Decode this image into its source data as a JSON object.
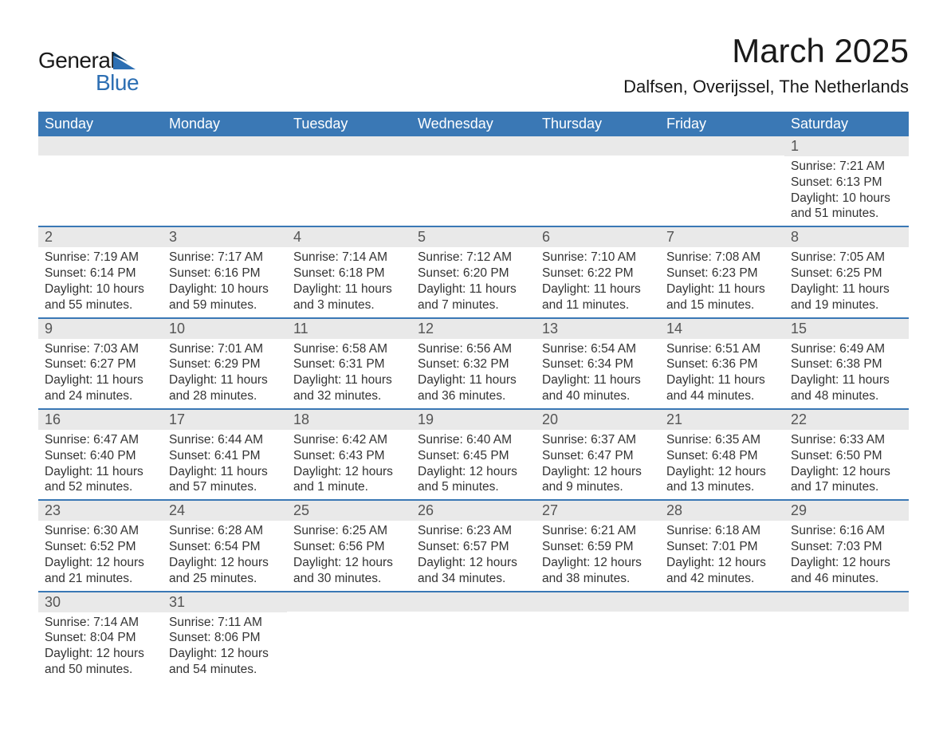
{
  "logo": {
    "text1": "General",
    "text2": "Blue"
  },
  "title": "March 2025",
  "location": "Dalfsen, Overijssel, The Netherlands",
  "colors": {
    "header_bg": "#3a78b5",
    "header_text": "#ffffff",
    "daynum_bg": "#e9e9e9",
    "row_border": "#3a78b5",
    "logo_blue": "#2d6fb3",
    "body_text": "#333333"
  },
  "day_headers": [
    "Sunday",
    "Monday",
    "Tuesday",
    "Wednesday",
    "Thursday",
    "Friday",
    "Saturday"
  ],
  "weeks": [
    [
      {
        "day": "",
        "sunrise": "",
        "sunset": "",
        "daylight": ""
      },
      {
        "day": "",
        "sunrise": "",
        "sunset": "",
        "daylight": ""
      },
      {
        "day": "",
        "sunrise": "",
        "sunset": "",
        "daylight": ""
      },
      {
        "day": "",
        "sunrise": "",
        "sunset": "",
        "daylight": ""
      },
      {
        "day": "",
        "sunrise": "",
        "sunset": "",
        "daylight": ""
      },
      {
        "day": "",
        "sunrise": "",
        "sunset": "",
        "daylight": ""
      },
      {
        "day": "1",
        "sunrise": "Sunrise: 7:21 AM",
        "sunset": "Sunset: 6:13 PM",
        "daylight": "Daylight: 10 hours and 51 minutes."
      }
    ],
    [
      {
        "day": "2",
        "sunrise": "Sunrise: 7:19 AM",
        "sunset": "Sunset: 6:14 PM",
        "daylight": "Daylight: 10 hours and 55 minutes."
      },
      {
        "day": "3",
        "sunrise": "Sunrise: 7:17 AM",
        "sunset": "Sunset: 6:16 PM",
        "daylight": "Daylight: 10 hours and 59 minutes."
      },
      {
        "day": "4",
        "sunrise": "Sunrise: 7:14 AM",
        "sunset": "Sunset: 6:18 PM",
        "daylight": "Daylight: 11 hours and 3 minutes."
      },
      {
        "day": "5",
        "sunrise": "Sunrise: 7:12 AM",
        "sunset": "Sunset: 6:20 PM",
        "daylight": "Daylight: 11 hours and 7 minutes."
      },
      {
        "day": "6",
        "sunrise": "Sunrise: 7:10 AM",
        "sunset": "Sunset: 6:22 PM",
        "daylight": "Daylight: 11 hours and 11 minutes."
      },
      {
        "day": "7",
        "sunrise": "Sunrise: 7:08 AM",
        "sunset": "Sunset: 6:23 PM",
        "daylight": "Daylight: 11 hours and 15 minutes."
      },
      {
        "day": "8",
        "sunrise": "Sunrise: 7:05 AM",
        "sunset": "Sunset: 6:25 PM",
        "daylight": "Daylight: 11 hours and 19 minutes."
      }
    ],
    [
      {
        "day": "9",
        "sunrise": "Sunrise: 7:03 AM",
        "sunset": "Sunset: 6:27 PM",
        "daylight": "Daylight: 11 hours and 24 minutes."
      },
      {
        "day": "10",
        "sunrise": "Sunrise: 7:01 AM",
        "sunset": "Sunset: 6:29 PM",
        "daylight": "Daylight: 11 hours and 28 minutes."
      },
      {
        "day": "11",
        "sunrise": "Sunrise: 6:58 AM",
        "sunset": "Sunset: 6:31 PM",
        "daylight": "Daylight: 11 hours and 32 minutes."
      },
      {
        "day": "12",
        "sunrise": "Sunrise: 6:56 AM",
        "sunset": "Sunset: 6:32 PM",
        "daylight": "Daylight: 11 hours and 36 minutes."
      },
      {
        "day": "13",
        "sunrise": "Sunrise: 6:54 AM",
        "sunset": "Sunset: 6:34 PM",
        "daylight": "Daylight: 11 hours and 40 minutes."
      },
      {
        "day": "14",
        "sunrise": "Sunrise: 6:51 AM",
        "sunset": "Sunset: 6:36 PM",
        "daylight": "Daylight: 11 hours and 44 minutes."
      },
      {
        "day": "15",
        "sunrise": "Sunrise: 6:49 AM",
        "sunset": "Sunset: 6:38 PM",
        "daylight": "Daylight: 11 hours and 48 minutes."
      }
    ],
    [
      {
        "day": "16",
        "sunrise": "Sunrise: 6:47 AM",
        "sunset": "Sunset: 6:40 PM",
        "daylight": "Daylight: 11 hours and 52 minutes."
      },
      {
        "day": "17",
        "sunrise": "Sunrise: 6:44 AM",
        "sunset": "Sunset: 6:41 PM",
        "daylight": "Daylight: 11 hours and 57 minutes."
      },
      {
        "day": "18",
        "sunrise": "Sunrise: 6:42 AM",
        "sunset": "Sunset: 6:43 PM",
        "daylight": "Daylight: 12 hours and 1 minute."
      },
      {
        "day": "19",
        "sunrise": "Sunrise: 6:40 AM",
        "sunset": "Sunset: 6:45 PM",
        "daylight": "Daylight: 12 hours and 5 minutes."
      },
      {
        "day": "20",
        "sunrise": "Sunrise: 6:37 AM",
        "sunset": "Sunset: 6:47 PM",
        "daylight": "Daylight: 12 hours and 9 minutes."
      },
      {
        "day": "21",
        "sunrise": "Sunrise: 6:35 AM",
        "sunset": "Sunset: 6:48 PM",
        "daylight": "Daylight: 12 hours and 13 minutes."
      },
      {
        "day": "22",
        "sunrise": "Sunrise: 6:33 AM",
        "sunset": "Sunset: 6:50 PM",
        "daylight": "Daylight: 12 hours and 17 minutes."
      }
    ],
    [
      {
        "day": "23",
        "sunrise": "Sunrise: 6:30 AM",
        "sunset": "Sunset: 6:52 PM",
        "daylight": "Daylight: 12 hours and 21 minutes."
      },
      {
        "day": "24",
        "sunrise": "Sunrise: 6:28 AM",
        "sunset": "Sunset: 6:54 PM",
        "daylight": "Daylight: 12 hours and 25 minutes."
      },
      {
        "day": "25",
        "sunrise": "Sunrise: 6:25 AM",
        "sunset": "Sunset: 6:56 PM",
        "daylight": "Daylight: 12 hours and 30 minutes."
      },
      {
        "day": "26",
        "sunrise": "Sunrise: 6:23 AM",
        "sunset": "Sunset: 6:57 PM",
        "daylight": "Daylight: 12 hours and 34 minutes."
      },
      {
        "day": "27",
        "sunrise": "Sunrise: 6:21 AM",
        "sunset": "Sunset: 6:59 PM",
        "daylight": "Daylight: 12 hours and 38 minutes."
      },
      {
        "day": "28",
        "sunrise": "Sunrise: 6:18 AM",
        "sunset": "Sunset: 7:01 PM",
        "daylight": "Daylight: 12 hours and 42 minutes."
      },
      {
        "day": "29",
        "sunrise": "Sunrise: 6:16 AM",
        "sunset": "Sunset: 7:03 PM",
        "daylight": "Daylight: 12 hours and 46 minutes."
      }
    ],
    [
      {
        "day": "30",
        "sunrise": "Sunrise: 7:14 AM",
        "sunset": "Sunset: 8:04 PM",
        "daylight": "Daylight: 12 hours and 50 minutes."
      },
      {
        "day": "31",
        "sunrise": "Sunrise: 7:11 AM",
        "sunset": "Sunset: 8:06 PM",
        "daylight": "Daylight: 12 hours and 54 minutes."
      },
      {
        "day": "",
        "sunrise": "",
        "sunset": "",
        "daylight": ""
      },
      {
        "day": "",
        "sunrise": "",
        "sunset": "",
        "daylight": ""
      },
      {
        "day": "",
        "sunrise": "",
        "sunset": "",
        "daylight": ""
      },
      {
        "day": "",
        "sunrise": "",
        "sunset": "",
        "daylight": ""
      },
      {
        "day": "",
        "sunrise": "",
        "sunset": "",
        "daylight": ""
      }
    ]
  ]
}
